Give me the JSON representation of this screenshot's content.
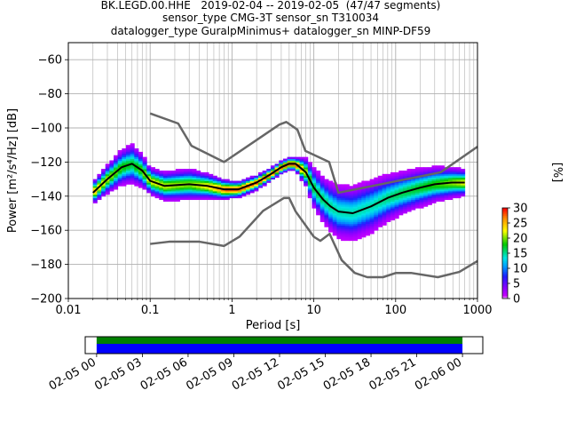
{
  "header": {
    "line1": "BK.LEGD.00.HHE   2019-02-04 -- 2019-02-05  (47/47 segments)",
    "line2": "sensor_type CMG-3T sensor_sn T310034",
    "line3": "datalogger_type GuralpMinimus+ datalogger_sn MINP-DF59"
  },
  "chart_data": [
    {
      "type": "heatmap",
      "title": "",
      "xlabel": "Period [s]",
      "ylabel": "Power [m²/s⁴/Hz] [dB]",
      "xscale": "log",
      "xlim": [
        0.01,
        1000
      ],
      "ylim": [
        -200,
        -50
      ],
      "xticks": [
        0.01,
        0.1,
        1,
        10,
        100,
        1000
      ],
      "xtick_labels": [
        "0.01",
        "0.1",
        "1",
        "10",
        "100",
        "1000"
      ],
      "yticks": [
        -200,
        -180,
        -160,
        -140,
        -120,
        -100,
        -80,
        -60
      ],
      "ytick_labels": [
        "−200",
        "−180",
        "−160",
        "−140",
        "−120",
        "−100",
        "−80",
        "−60"
      ],
      "grid": true,
      "colorbar": {
        "label": "[%]",
        "range": [
          0,
          30
        ],
        "ticks": [
          0,
          5,
          10,
          15,
          20,
          25,
          30
        ],
        "tick_labels": [
          "0",
          "5",
          "10",
          "15",
          "20",
          "25",
          "30"
        ],
        "colormap": "pqlx"
      },
      "series": [
        {
          "name": "",
          "role": "mean",
          "color": "#000000",
          "points": [
            [
              0.02,
              -138
            ],
            [
              0.03,
              -130
            ],
            [
              0.045,
              -123
            ],
            [
              0.06,
              -121
            ],
            [
              0.08,
              -125
            ],
            [
              0.1,
              -131
            ],
            [
              0.15,
              -134
            ],
            [
              0.3,
              -133
            ],
            [
              0.5,
              -134
            ],
            [
              0.8,
              -136
            ],
            [
              1.2,
              -136
            ],
            [
              2,
              -132
            ],
            [
              3,
              -127
            ],
            [
              4,
              -123
            ],
            [
              5,
              -121
            ],
            [
              6,
              -121
            ],
            [
              8,
              -126
            ],
            [
              10,
              -135
            ],
            [
              13,
              -142
            ],
            [
              16,
              -146
            ],
            [
              20,
              -149
            ],
            [
              30,
              -150
            ],
            [
              50,
              -146
            ],
            [
              80,
              -141
            ],
            [
              120,
              -138
            ],
            [
              200,
              -135
            ],
            [
              300,
              -133
            ],
            [
              500,
              -132
            ],
            [
              700,
              -132
            ]
          ]
        },
        {
          "name": "",
          "role": "high noise model",
          "color": "#666666",
          "points": [
            [
              0.1,
              -91.5
            ],
            [
              0.22,
              -97.4
            ],
            [
              0.32,
              -110.5
            ],
            [
              0.8,
              -120
            ],
            [
              3.8,
              -98
            ],
            [
              4.6,
              -96.5
            ],
            [
              6.3,
              -101
            ],
            [
              7.9,
              -113.5
            ],
            [
              15.4,
              -120
            ],
            [
              20,
              -138
            ],
            [
              354.8,
              -126
            ],
            [
              1000,
              -111
            ]
          ]
        },
        {
          "name": "",
          "role": "low noise model",
          "color": "#666666",
          "points": [
            [
              0.1,
              -168
            ],
            [
              0.17,
              -166.7
            ],
            [
              0.4,
              -166.7
            ],
            [
              0.8,
              -169.2
            ],
            [
              1.24,
              -163.7
            ],
            [
              2.4,
              -148.6
            ],
            [
              4.3,
              -141.1
            ],
            [
              5,
              -141.1
            ],
            [
              6,
              -149
            ],
            [
              10,
              -163.8
            ],
            [
              12,
              -166.2
            ],
            [
              15.6,
              -162.1
            ],
            [
              21.9,
              -177.5
            ],
            [
              31.6,
              -185
            ],
            [
              45,
              -187.5
            ],
            [
              70,
              -187.5
            ],
            [
              101,
              -185
            ],
            [
              154,
              -185
            ],
            [
              328,
              -187.5
            ],
            [
              600,
              -184.4
            ],
            [
              1000,
              -178
            ]
          ]
        }
      ],
      "density": {
        "center_curve": "mean",
        "spread_db": [
          [
            0.02,
            5
          ],
          [
            0.06,
            9
          ],
          [
            0.1,
            6
          ],
          [
            0.3,
            7
          ],
          [
            1,
            4
          ],
          [
            3,
            3
          ],
          [
            6,
            3
          ],
          [
            10,
            9
          ],
          [
            20,
            12
          ],
          [
            50,
            12
          ],
          [
            100,
            10
          ],
          [
            300,
            8
          ],
          [
            700,
            6
          ]
        ]
      }
    },
    {
      "type": "bar",
      "title": "",
      "xlabel": "",
      "ylabel": "",
      "xlim": [
        "2019-02-04 23:15",
        "2019-02-06 01:20"
      ],
      "xticks": [
        "02-05 00",
        "02-05 03",
        "02-05 06",
        "02-05 09",
        "02-05 12",
        "02-05 15",
        "02-05 18",
        "02-05 21",
        "02-06 00"
      ],
      "data_coverage": [
        {
          "start": "2019-02-05 00:00",
          "end": "2019-02-06 00:00",
          "color": "#008000"
        }
      ],
      "psd_coverage": [
        {
          "start": "2019-02-05 00:00",
          "end": "2019-02-06 00:00",
          "color": "#0000ff"
        }
      ]
    }
  ]
}
